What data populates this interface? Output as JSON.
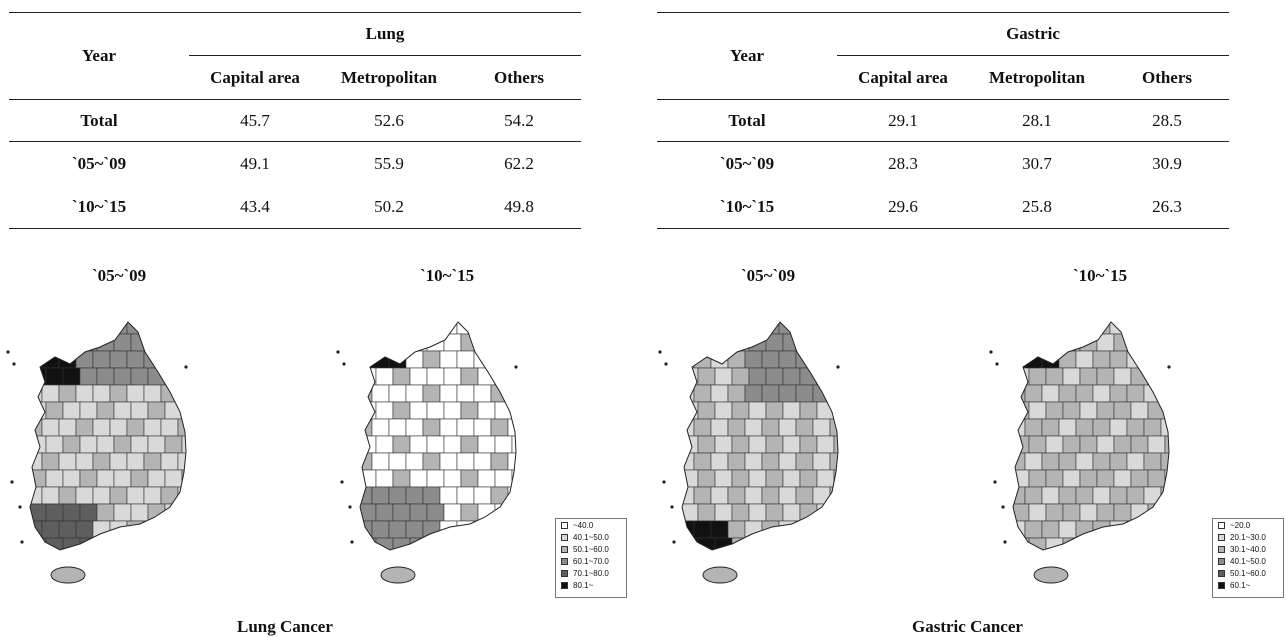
{
  "lung": {
    "year_header": "Year",
    "group_header": "Lung",
    "columns": [
      "Capital area",
      "Metropolitan",
      "Others"
    ],
    "rows": [
      {
        "label": "Total",
        "values": [
          "45.7",
          "52.6",
          "54.2"
        ]
      },
      {
        "label": "`05~`09",
        "values": [
          "49.1",
          "55.9",
          "62.2"
        ]
      },
      {
        "label": "`10~`15",
        "values": [
          "43.4",
          "50.2",
          "49.8"
        ]
      }
    ],
    "periods": [
      "`05~`09",
      "`10~`15"
    ],
    "caption": "Lung Cancer",
    "legend": [
      "~40.0",
      "40.1~50.0",
      "50.1~60.0",
      "60.1~70.0",
      "70.1~80.0",
      "80.1~"
    ]
  },
  "gastric": {
    "year_header": "Year",
    "group_header": "Gastric",
    "columns": [
      "Capital area",
      "Metropolitan",
      "Others"
    ],
    "rows": [
      {
        "label": "Total",
        "values": [
          "29.1",
          "28.1",
          "28.5"
        ]
      },
      {
        "label": "`05~`09",
        "values": [
          "28.3",
          "30.7",
          "30.9"
        ]
      },
      {
        "label": "`10~`15",
        "values": [
          "29.6",
          "25.8",
          "26.3"
        ]
      }
    ],
    "periods": [
      "`05~`09",
      "`10~`15"
    ],
    "caption": "Gastric Cancer",
    "legend": [
      "~20.0",
      "20.1~30.0",
      "30.1~40.0",
      "40.1~50.0",
      "50.1~60.0",
      "60.1~"
    ]
  },
  "legend_colors": [
    "#ffffff",
    "#d9d9d9",
    "#b4b4b4",
    "#8c8c8c",
    "#5e5e5e",
    "#111111"
  ]
}
